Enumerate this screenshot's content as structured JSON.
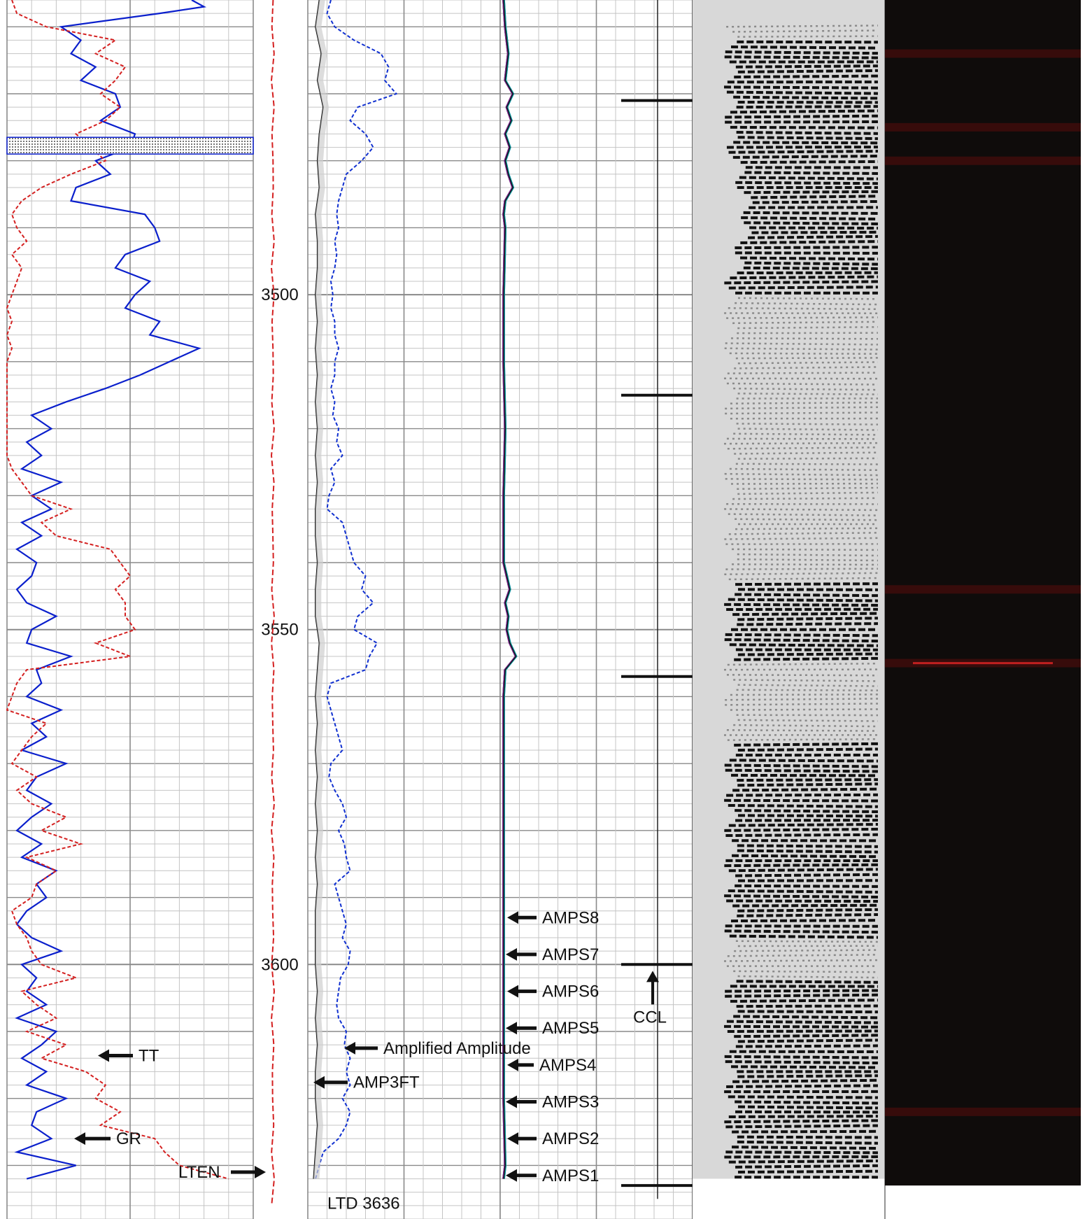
{
  "chart_data": {
    "type": "line",
    "title": "",
    "depth_axis": {
      "ylim": [
        3456,
        3638
      ],
      "tick_labels": [
        "3500",
        "3550",
        "3600"
      ],
      "label_every": 50
    },
    "tracks": [
      {
        "name": "track-1",
        "series": [
          {
            "name": "GR",
            "color": "#0a1fcc",
            "style": "solid",
            "depth": [
              3456,
              3457,
              3458,
              3460,
              3462,
              3464,
              3466,
              3468,
              3470,
              3472,
              3474,
              3476,
              3478,
              3480,
              3482,
              3484,
              3486,
              3488,
              3490,
              3492,
              3494,
              3496,
              3498,
              3500,
              3502,
              3504,
              3506,
              3508,
              3510,
              3512,
              3514,
              3516,
              3518,
              3520,
              3522,
              3524,
              3526,
              3528,
              3530,
              3532,
              3534,
              3536,
              3538,
              3540,
              3542,
              3544,
              3546,
              3548,
              3550,
              3552,
              3554,
              3556,
              3558,
              3560,
              3562,
              3564,
              3566,
              3568,
              3570,
              3572,
              3574,
              3576,
              3578,
              3580,
              3582,
              3584,
              3586,
              3588,
              3590,
              3592,
              3594,
              3596,
              3598,
              3600,
              3602,
              3604,
              3606,
              3608,
              3610,
              3612,
              3614,
              3616,
              3618,
              3620,
              3622,
              3624,
              3626,
              3628,
              3630,
              3632
            ],
            "values": [
              75,
              80,
              62,
              22,
              30,
              26,
              36,
              30,
              44,
              46,
              38,
              52,
              50,
              36,
              42,
              28,
              26,
              56,
              60,
              62,
              48,
              44,
              58,
              52,
              48,
              62,
              58,
              78,
              66,
              54,
              40,
              24,
              10,
              18,
              8,
              14,
              6,
              22,
              10,
              18,
              6,
              14,
              4,
              12,
              10,
              4,
              8,
              20,
              10,
              8,
              26,
              12,
              14,
              8,
              22,
              10,
              16,
              6,
              24,
              12,
              8,
              18,
              10,
              4,
              14,
              6,
              20,
              12,
              16,
              8,
              4,
              10,
              22,
              6,
              12,
              8,
              16,
              4,
              20,
              14,
              6,
              16,
              8,
              24,
              12,
              10,
              18,
              4,
              28,
              8
            ]
          },
          {
            "name": "TT",
            "color": "#d42020",
            "style": "dashed",
            "depth": [
              3456,
              3458,
              3460,
              3462,
              3464,
              3466,
              3468,
              3470,
              3472,
              3474,
              3476,
              3478,
              3480,
              3482,
              3484,
              3486,
              3488,
              3490,
              3492,
              3494,
              3496,
              3498,
              3500,
              3502,
              3504,
              3506,
              3508,
              3510,
              3512,
              3514,
              3516,
              3518,
              3520,
              3522,
              3524,
              3526,
              3528,
              3530,
              3532,
              3534,
              3536,
              3538,
              3540,
              3542,
              3544,
              3546,
              3548,
              3550,
              3552,
              3554,
              3556,
              3558,
              3560,
              3562,
              3564,
              3566,
              3568,
              3570,
              3572,
              3574,
              3576,
              3578,
              3580,
              3582,
              3584,
              3586,
              3588,
              3590,
              3592,
              3594,
              3596,
              3598,
              3600,
              3602,
              3604,
              3606,
              3608,
              3610,
              3612,
              3614,
              3616,
              3618,
              3620,
              3622,
              3624,
              3626,
              3628,
              3630,
              3632
            ],
            "values": [
              2,
              4,
              16,
              44,
              36,
              48,
              44,
              38,
              46,
              40,
              28,
              34,
              40,
              26,
              14,
              6,
              2,
              4,
              8,
              2,
              6,
              4,
              2,
              0,
              2,
              0,
              2,
              0,
              0,
              0,
              0,
              0,
              0,
              0,
              0,
              2,
              6,
              10,
              26,
              14,
              20,
              42,
              46,
              50,
              44,
              48,
              48,
              52,
              36,
              50,
              8,
              4,
              2,
              0,
              16,
              10,
              6,
              2,
              12,
              4,
              10,
              24,
              14,
              30,
              8,
              20,
              12,
              10,
              2,
              4,
              8,
              10,
              14,
              28,
              6,
              12,
              20,
              8,
              24,
              14,
              32,
              40,
              36,
              46,
              38,
              60,
              64,
              70,
              90
            ]
          }
        ],
        "xlim": [
          0,
          100
        ]
      },
      {
        "name": "track-2",
        "series": [
          {
            "name": "AMP3FT",
            "color": "#111111",
            "style": "solid",
            "depth": [
              3456,
              3460,
              3464,
              3468,
              3472,
              3476,
              3480,
              3484,
              3488,
              3492,
              3496,
              3500,
              3504,
              3508,
              3512,
              3516,
              3520,
              3524,
              3528,
              3532,
              3536,
              3540,
              3544,
              3548,
              3552,
              3556,
              3560,
              3564,
              3568,
              3572,
              3576,
              3580,
              3584,
              3588,
              3592,
              3596,
              3600,
              3604,
              3608,
              3612,
              3616,
              3620,
              3624,
              3628,
              3632
            ],
            "values": [
              6,
              4,
              7,
              5,
              8,
              6,
              5,
              6,
              4,
              5,
              5,
              4,
              5,
              4,
              5,
              4,
              5,
              4,
              5,
              4,
              4,
              5,
              4,
              4,
              6,
              5,
              4,
              5,
              4,
              5,
              4,
              5,
              4,
              5,
              4,
              4,
              4,
              5,
              4,
              5,
              4,
              4,
              5,
              4,
              3
            ]
          },
          {
            "name": "Amplified Amplitude",
            "color": "#1030d0",
            "style": "dashed",
            "depth": [
              3456,
              3458,
              3460,
              3462,
              3464,
              3466,
              3468,
              3470,
              3472,
              3474,
              3476,
              3478,
              3480,
              3482,
              3484,
              3486,
              3488,
              3490,
              3492,
              3494,
              3496,
              3498,
              3500,
              3502,
              3504,
              3506,
              3508,
              3510,
              3512,
              3514,
              3516,
              3518,
              3520,
              3522,
              3524,
              3526,
              3528,
              3530,
              3532,
              3534,
              3536,
              3538,
              3540,
              3542,
              3544,
              3546,
              3548,
              3550,
              3552,
              3554,
              3556,
              3558,
              3560,
              3562,
              3564,
              3566,
              3568,
              3570,
              3572,
              3574,
              3576,
              3578,
              3580,
              3582,
              3584,
              3586,
              3588,
              3590,
              3592,
              3594,
              3596,
              3598,
              3600,
              3602,
              3604,
              3606,
              3608,
              3610,
              3612,
              3614,
              3616,
              3618,
              3620,
              3622,
              3624,
              3626,
              3628,
              3630,
              3632
            ],
            "values": [
              12,
              10,
              14,
              24,
              38,
              42,
              40,
              46,
              26,
              22,
              30,
              34,
              28,
              20,
              18,
              16,
              15,
              16,
              14,
              15,
              14,
              12,
              13,
              12,
              14,
              14,
              16,
              14,
              14,
              12,
              14,
              13,
              16,
              15,
              18,
              12,
              14,
              11,
              10,
              18,
              20,
              22,
              24,
              30,
              28,
              34,
              26,
              24,
              36,
              32,
              30,
              12,
              10,
              12,
              14,
              16,
              18,
              12,
              11,
              14,
              18,
              20,
              16,
              19,
              20,
              22,
              14,
              16,
              18,
              20,
              18,
              22,
              21,
              17,
              16,
              15,
              16,
              20,
              19,
              22,
              20,
              22,
              18,
              22,
              20,
              16,
              8,
              6,
              4
            ]
          }
        ],
        "xlim": [
          0,
          100
        ]
      },
      {
        "name": "track-3",
        "series": [
          {
            "name": "AMPS8",
            "color": "#0a7a0a",
            "style": "solid"
          },
          {
            "name": "AMPS7",
            "color": "#111111",
            "style": "solid"
          },
          {
            "name": "AMPS6",
            "color": "#1030d0",
            "style": "solid"
          },
          {
            "name": "AMPS5",
            "color": "#c01010",
            "style": "solid"
          },
          {
            "name": "AMPS4",
            "color": "#111111",
            "style": "solid"
          },
          {
            "name": "AMPS3",
            "color": "#0a9a9a",
            "style": "solid"
          },
          {
            "name": "AMPS2",
            "color": "#7a2aa0",
            "style": "solid"
          },
          {
            "name": "AMPS1",
            "color": "#111111",
            "style": "solid"
          }
        ],
        "baseline_depth": [
          3456,
          3460,
          3464,
          3468,
          3470,
          3472,
          3474,
          3476,
          3478,
          3480,
          3482,
          3484,
          3486,
          3488,
          3490,
          3500,
          3510,
          3520,
          3530,
          3540,
          3542,
          3544,
          3546,
          3548,
          3550,
          3552,
          3554,
          3556,
          3560,
          3570,
          3580,
          3590,
          3600,
          3610,
          3620,
          3630,
          3632
        ],
        "baseline_values": [
          0,
          1,
          3,
          1,
          6,
          2,
          5,
          1,
          4,
          1,
          3,
          6,
          1,
          0,
          1,
          0,
          0,
          1,
          0,
          0,
          2,
          4,
          1,
          3,
          2,
          4,
          8,
          1,
          0,
          0,
          0,
          0,
          0,
          0,
          0,
          1,
          0
        ],
        "xlim": [
          0,
          100
        ]
      },
      {
        "name": "track-4",
        "series": [
          {
            "name": "CCL",
            "color": "#111111",
            "style": "solid",
            "collar_depths": [
              3471,
              3515,
              3557,
              3600,
              3633
            ]
          }
        ],
        "xlim": [
          -10,
          10
        ]
      }
    ],
    "labels": {
      "gr": "GR",
      "tt": "TT",
      "lten": "LTEN",
      "amp3ft": "AMP3FT",
      "amplified": "Amplified Amplitude",
      "ccl": "CCL",
      "ltd": "LTD 3636",
      "amps": [
        "AMPS8",
        "AMPS7",
        "AMPS6",
        "AMPS5",
        "AMPS4",
        "AMPS3",
        "AMPS2",
        "AMPS1"
      ]
    },
    "vdl": {
      "bright_bands": [
        {
          "depth_from": 3462,
          "depth_to": 3500
        },
        {
          "depth_from": 3543,
          "depth_to": 3555
        },
        {
          "depth_from": 3567,
          "depth_to": 3596
        },
        {
          "depth_from": 3602,
          "depth_to": 3632
        }
      ],
      "valley_depths": [
        3488
      ]
    },
    "image_track": {
      "background": "#0f0c0b",
      "red_streak_depths": [
        3464,
        3475,
        3480,
        3544,
        3555,
        3622
      ]
    },
    "grid": true
  }
}
